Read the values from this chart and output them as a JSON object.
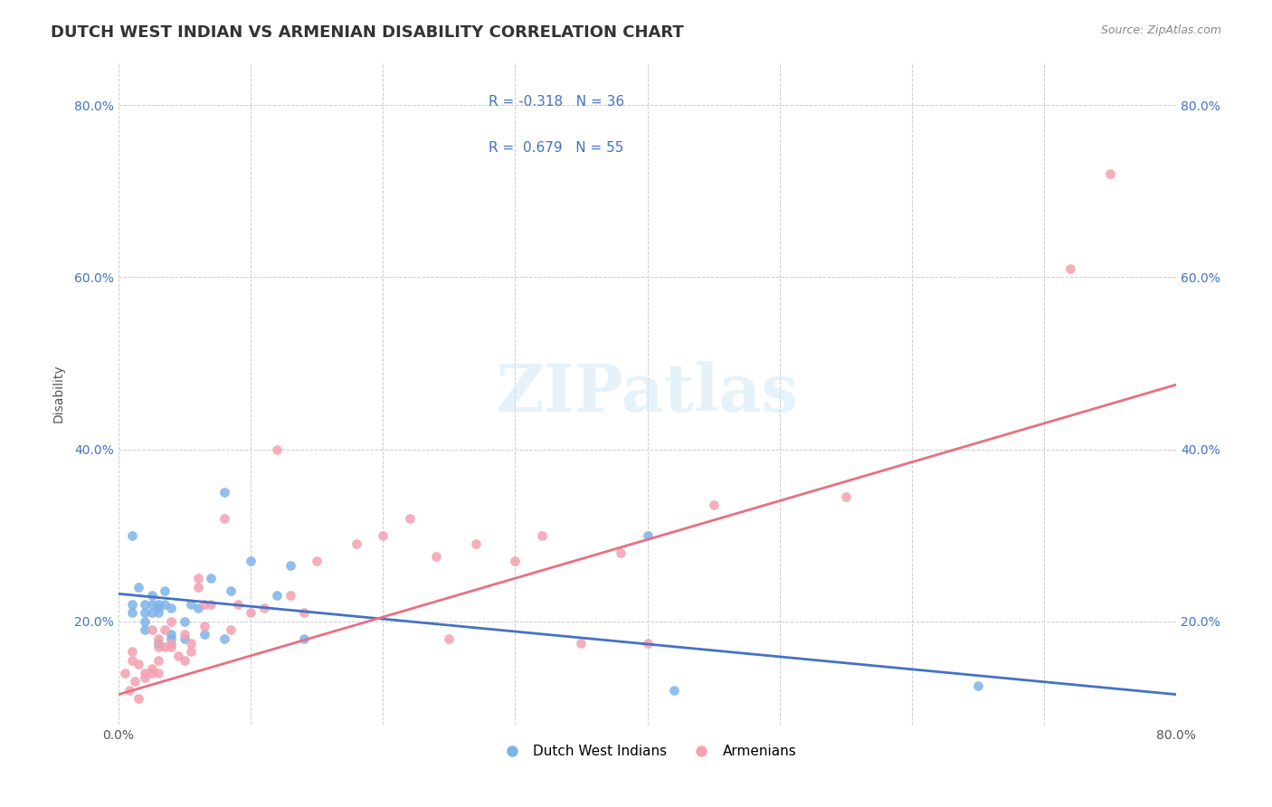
{
  "title": "DUTCH WEST INDIAN VS ARMENIAN DISABILITY CORRELATION CHART",
  "source": "Source: ZipAtlas.com",
  "xlabel_bottom": "",
  "ylabel": "Disability",
  "xmin": 0.0,
  "xmax": 0.8,
  "ymin": 0.08,
  "ymax": 0.85,
  "yticks": [
    0.2,
    0.4,
    0.6,
    0.8
  ],
  "ytick_labels": [
    "20.0%",
    "40.0%",
    "60.0%",
    "80.0%"
  ],
  "xticks": [
    0.0,
    0.1,
    0.2,
    0.3,
    0.4,
    0.5,
    0.6,
    0.7,
    0.8
  ],
  "xtick_labels": [
    "0.0%",
    "",
    "",
    "",
    "",
    "",
    "",
    "",
    "80.0%"
  ],
  "blue_color": "#7EB3E8",
  "pink_color": "#F4A0B0",
  "blue_line_color": "#4472C4",
  "pink_line_color": "#E87080",
  "R_blue": -0.318,
  "N_blue": 36,
  "R_pink": 0.679,
  "N_pink": 55,
  "legend_label_blue": "Dutch West Indians",
  "legend_label_pink": "Armenians",
  "watermark": "ZIPatlas",
  "blue_points_x": [
    0.01,
    0.01,
    0.01,
    0.015,
    0.02,
    0.02,
    0.02,
    0.02,
    0.025,
    0.025,
    0.025,
    0.03,
    0.03,
    0.03,
    0.03,
    0.035,
    0.035,
    0.04,
    0.04,
    0.04,
    0.05,
    0.05,
    0.055,
    0.06,
    0.065,
    0.07,
    0.08,
    0.08,
    0.085,
    0.1,
    0.12,
    0.13,
    0.14,
    0.4,
    0.42,
    0.65
  ],
  "blue_points_y": [
    0.3,
    0.22,
    0.21,
    0.24,
    0.22,
    0.21,
    0.2,
    0.19,
    0.23,
    0.22,
    0.21,
    0.22,
    0.215,
    0.21,
    0.175,
    0.235,
    0.22,
    0.215,
    0.185,
    0.18,
    0.2,
    0.18,
    0.22,
    0.215,
    0.185,
    0.25,
    0.35,
    0.18,
    0.235,
    0.27,
    0.23,
    0.265,
    0.18,
    0.3,
    0.12,
    0.125
  ],
  "pink_points_x": [
    0.005,
    0.008,
    0.01,
    0.01,
    0.012,
    0.015,
    0.015,
    0.02,
    0.02,
    0.025,
    0.025,
    0.025,
    0.03,
    0.03,
    0.03,
    0.03,
    0.035,
    0.035,
    0.04,
    0.04,
    0.04,
    0.045,
    0.05,
    0.05,
    0.055,
    0.055,
    0.06,
    0.06,
    0.065,
    0.065,
    0.07,
    0.08,
    0.085,
    0.09,
    0.1,
    0.11,
    0.12,
    0.13,
    0.14,
    0.15,
    0.18,
    0.2,
    0.22,
    0.24,
    0.25,
    0.27,
    0.3,
    0.32,
    0.35,
    0.38,
    0.4,
    0.45,
    0.55,
    0.72,
    0.75
  ],
  "pink_points_y": [
    0.14,
    0.12,
    0.165,
    0.155,
    0.13,
    0.15,
    0.11,
    0.14,
    0.135,
    0.145,
    0.19,
    0.14,
    0.17,
    0.18,
    0.155,
    0.14,
    0.19,
    0.17,
    0.17,
    0.2,
    0.175,
    0.16,
    0.185,
    0.155,
    0.175,
    0.165,
    0.24,
    0.25,
    0.22,
    0.195,
    0.22,
    0.32,
    0.19,
    0.22,
    0.21,
    0.215,
    0.4,
    0.23,
    0.21,
    0.27,
    0.29,
    0.3,
    0.32,
    0.275,
    0.18,
    0.29,
    0.27,
    0.3,
    0.175,
    0.28,
    0.175,
    0.335,
    0.345,
    0.61,
    0.72
  ],
  "blue_trend_x": [
    0.0,
    0.8
  ],
  "blue_trend_y": [
    0.232,
    0.115
  ],
  "pink_trend_x": [
    0.0,
    0.8
  ],
  "pink_trend_y": [
    0.115,
    0.475
  ],
  "background_color": "#FFFFFF",
  "grid_color": "#CCCCCC",
  "title_fontsize": 13,
  "axis_label_fontsize": 10,
  "tick_fontsize": 10,
  "legend_fontsize": 11
}
